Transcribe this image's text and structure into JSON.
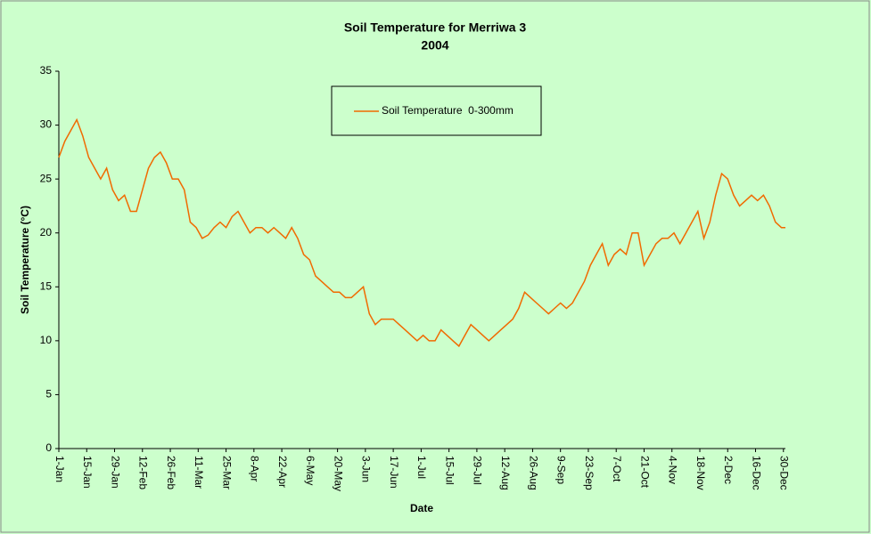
{
  "chart_data": {
    "type": "line",
    "title": "Soil Temperature for Merriwa 3",
    "subtitle": "2004",
    "x_label": "Date",
    "y_label": "Soil Temperature (°C)",
    "x": [
      0,
      3,
      6,
      9,
      12,
      15,
      18,
      21,
      24,
      27,
      30,
      33,
      36,
      39,
      42,
      45,
      48,
      51,
      54,
      57,
      60,
      63,
      66,
      69,
      72,
      75,
      78,
      81,
      84,
      87,
      90,
      93,
      96,
      99,
      102,
      105,
      108,
      111,
      114,
      117,
      120,
      123,
      126,
      129,
      132,
      135,
      138,
      141,
      144,
      147,
      150,
      153,
      156,
      159,
      162,
      165,
      168,
      171,
      174,
      177,
      180,
      183,
      186,
      189,
      192,
      195,
      198,
      201,
      204,
      207,
      210,
      213,
      216,
      219,
      222,
      225,
      228,
      231,
      234,
      237,
      240,
      243,
      246,
      249,
      252,
      255,
      258,
      261,
      264,
      267,
      270,
      273,
      276,
      279,
      282,
      285,
      288,
      291,
      294,
      297,
      300,
      303,
      306,
      309,
      312,
      315,
      318,
      321,
      324,
      327,
      330,
      333,
      336,
      339,
      342,
      345,
      348,
      351,
      354,
      357,
      360,
      363,
      365
    ],
    "series": [
      {
        "name": "Soil Temperature  0-300mm",
        "color": "#f06a00",
        "values": [
          27,
          28.5,
          29.5,
          30.5,
          29,
          27,
          26,
          25,
          26,
          24,
          23,
          23.5,
          22,
          22,
          24,
          26,
          27,
          27.5,
          26.5,
          25,
          25,
          24,
          21,
          20.5,
          19.5,
          19.8,
          20.5,
          21,
          20.5,
          21.5,
          22,
          21,
          20,
          20.5,
          20.5,
          20,
          20.5,
          20,
          19.5,
          20.5,
          19.5,
          18,
          17.5,
          16,
          15.5,
          15,
          14.5,
          14.5,
          14,
          14,
          14.5,
          15,
          12.5,
          11.5,
          12,
          12,
          12,
          11.5,
          11,
          10.5,
          10,
          10.5,
          10,
          10,
          11,
          10.5,
          10,
          9.5,
          10.5,
          11.5,
          11,
          10.5,
          10,
          10.5,
          11,
          11.5,
          12,
          13,
          14.5,
          14,
          13.5,
          13,
          12.5,
          13,
          13.5,
          13,
          13.5,
          14.5,
          15.5,
          17,
          18,
          19,
          17,
          18,
          18.5,
          18,
          20,
          20,
          17,
          18,
          19,
          19.5,
          19.5,
          20,
          19,
          20,
          21,
          22,
          19.5,
          21,
          23.5,
          25.5,
          25,
          23.5,
          22.5,
          23,
          23.5,
          23,
          23.5,
          22.5,
          21,
          20.5,
          20.5
        ]
      }
    ],
    "xlim": [
      0,
      365
    ],
    "xticks": [
      {
        "value": 0,
        "label": "1-Jan"
      },
      {
        "value": 14,
        "label": "15-Jan"
      },
      {
        "value": 28,
        "label": "29-Jan"
      },
      {
        "value": 42,
        "label": "12-Feb"
      },
      {
        "value": 56,
        "label": "26-Feb"
      },
      {
        "value": 70,
        "label": "11-Mar"
      },
      {
        "value": 84,
        "label": "25-Mar"
      },
      {
        "value": 98,
        "label": "8-Apr"
      },
      {
        "value": 112,
        "label": "22-Apr"
      },
      {
        "value": 126,
        "label": "6-May"
      },
      {
        "value": 140,
        "label": "20-May"
      },
      {
        "value": 154,
        "label": "3-Jun"
      },
      {
        "value": 168,
        "label": "17-Jun"
      },
      {
        "value": 182,
        "label": "1-Jul"
      },
      {
        "value": 196,
        "label": "15-Jul"
      },
      {
        "value": 210,
        "label": "29-Jul"
      },
      {
        "value": 224,
        "label": "12-Aug"
      },
      {
        "value": 238,
        "label": "26-Aug"
      },
      {
        "value": 252,
        "label": "9-Sep"
      },
      {
        "value": 266,
        "label": "23-Sep"
      },
      {
        "value": 280,
        "label": "7-Oct"
      },
      {
        "value": 294,
        "label": "21-Oct"
      },
      {
        "value": 308,
        "label": "4-Nov"
      },
      {
        "value": 322,
        "label": "18-Nov"
      },
      {
        "value": 336,
        "label": "2-Dec"
      },
      {
        "value": 350,
        "label": "16-Dec"
      },
      {
        "value": 364,
        "label": "30-Dec"
      }
    ],
    "ylim": [
      0,
      35
    ],
    "yticks": [
      0,
      5,
      10,
      15,
      20,
      25,
      30,
      35
    ],
    "grid": false
  }
}
